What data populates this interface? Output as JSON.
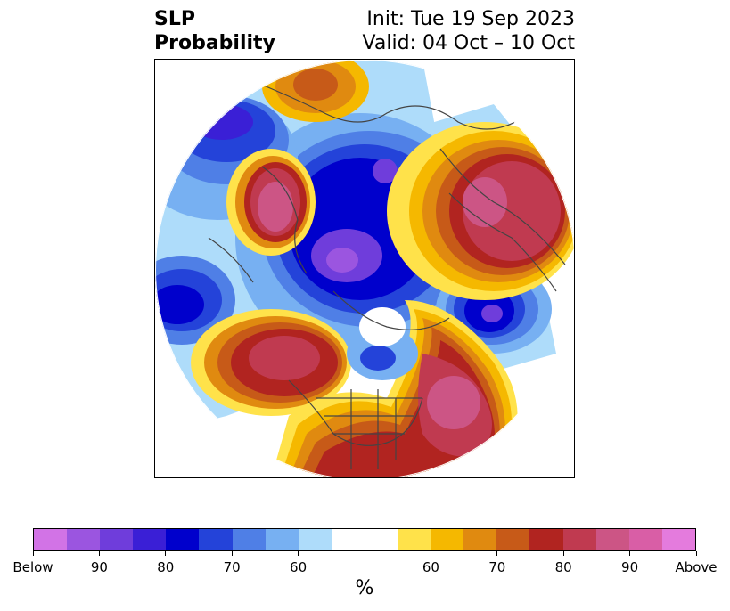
{
  "title": {
    "left_line1": "SLP",
    "left_line2": "Probability",
    "right_line1": "Init: Tue 19 Sep 2023",
    "right_line2": "Valid: 04 Oct – 10 Oct"
  },
  "colorbar": {
    "unit": "%",
    "colors": [
      "#d273e6",
      "#9b55e0",
      "#6f3ddb",
      "#3a1fd6",
      "#0000cc",
      "#2443d9",
      "#4f7fe6",
      "#77b0f2",
      "#aedcfa",
      "#ffffff",
      "#ffffff",
      "#ffe24a",
      "#f5b800",
      "#e08a10",
      "#c75a18",
      "#b12420",
      "#c03a50",
      "#cc5585",
      "#d95ea6",
      "#e47bdd"
    ],
    "labels": [
      {
        "text": "Below",
        "index": 0
      },
      {
        "text": "90",
        "index": 2
      },
      {
        "text": "80",
        "index": 4
      },
      {
        "text": "70",
        "index": 6
      },
      {
        "text": "60",
        "index": 8
      },
      {
        "text": "60",
        "index": 12
      },
      {
        "text": "70",
        "index": 14
      },
      {
        "text": "80",
        "index": 16
      },
      {
        "text": "90",
        "index": 18
      },
      {
        "text": "Above",
        "index": 20
      }
    ]
  }
}
